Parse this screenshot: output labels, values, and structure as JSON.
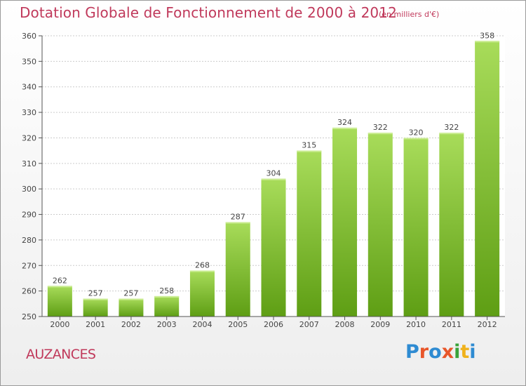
{
  "header": {
    "title": "Dotation Globale de Fonctionnement de 2000 à 2012",
    "subtitle": "(en milliers d'€)"
  },
  "commune": "AUZANCES",
  "logo": {
    "text": "Proxiti",
    "letter_colors": [
      "#2e8bd2",
      "#e8562a",
      "#2e8bd2",
      "#e8562a",
      "#3aa33a",
      "#f0b21c",
      "#2e8bd2"
    ]
  },
  "colors": {
    "bar_light": "#a8dc5a",
    "bar_dark": "#5e9e14",
    "grid": "#cccccc",
    "axis": "#555555",
    "text": "#444444",
    "accent": "#c0395b"
  },
  "chart_data": {
    "type": "bar",
    "title": "Dotation Globale de Fonctionnement de 2000 à 2012",
    "subtitle": "(en milliers d'€)",
    "categories": [
      "2000",
      "2001",
      "2002",
      "2003",
      "2004",
      "2005",
      "2006",
      "2007",
      "2008",
      "2009",
      "2010",
      "2011",
      "2012"
    ],
    "values": [
      262,
      257,
      257,
      258,
      268,
      287,
      304,
      315,
      324,
      322,
      320,
      322,
      358
    ],
    "ylim": [
      250,
      360
    ],
    "yticks": [
      250,
      260,
      270,
      280,
      290,
      300,
      310,
      320,
      330,
      340,
      350,
      360
    ],
    "grid": true,
    "data_labels": true
  }
}
